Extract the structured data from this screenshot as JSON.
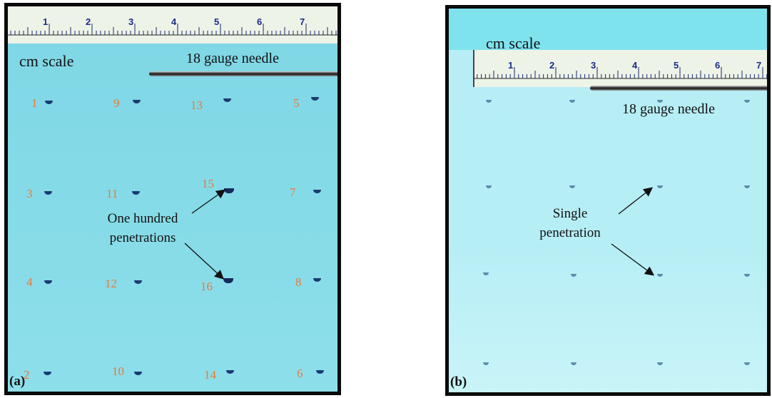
{
  "panel_a": {
    "tag": "(a)",
    "scale_label": "cm scale",
    "needle_label": "18 gauge needle",
    "ruler_numbers": [
      "1",
      "2",
      "3",
      "4",
      "5",
      "6",
      "7"
    ],
    "annotation_lines": [
      "One hundred",
      "penetrations"
    ],
    "site_numbers": [
      "1",
      "9",
      "13",
      "5",
      "3",
      "11",
      "15",
      "7",
      "4",
      "12",
      "16",
      "8",
      "2",
      "10",
      "14",
      "6"
    ]
  },
  "panel_b": {
    "tag": "(b)",
    "scale_label": "cm scale",
    "needle_label": "18 gauge needle",
    "ruler_numbers": [
      "1",
      "2",
      "3",
      "4",
      "5",
      "6",
      "7"
    ],
    "annotation_lines": [
      "Single",
      "penetration"
    ]
  },
  "colors": {
    "background_a": "#7ed6e4",
    "background_b": "#b8eef5",
    "site_number": "#e87a3a",
    "mark": "#1b3a72"
  }
}
